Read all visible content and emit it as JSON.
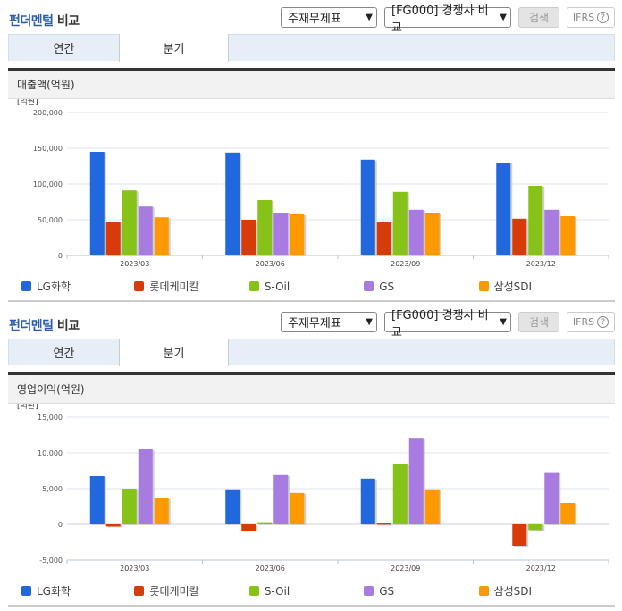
{
  "sections": [
    {
      "title_blue": "펀더멘털",
      "title_rest": " 비교",
      "controls": {
        "select1": "주재무제표",
        "select2": "[FG000] 경쟁사 비교",
        "search_label": "검색",
        "ifrs_label": "IFRS",
        "help_glyph": "?"
      },
      "tabs": [
        {
          "label": "연간"
        },
        {
          "label": "분기"
        }
      ],
      "active_tab": 1,
      "subhead": "매출액(억원)",
      "unit": "[억원]"
    },
    {
      "title_blue": "펀더멘털",
      "title_rest": " 비교",
      "controls": {
        "select1": "주재무제표",
        "select2": "[FG000] 경쟁사 비교",
        "search_label": "검색",
        "ifrs_label": "IFRS",
        "help_glyph": "?"
      },
      "tabs": [
        {
          "label": "연간"
        },
        {
          "label": "분기"
        }
      ],
      "active_tab": 1,
      "subhead": "영업이익(억원)",
      "unit": "[억원]"
    }
  ],
  "legend": [
    {
      "name": "LG화학",
      "color": "#2167dd"
    },
    {
      "name": "롯데케미칼",
      "color": "#d83b0a"
    },
    {
      "name": "S-Oil",
      "color": "#86c218"
    },
    {
      "name": "GS",
      "color": "#a77be0"
    },
    {
      "name": "삼성SDI",
      "color": "#ff9900"
    }
  ],
  "chart_data": [
    {
      "type": "bar",
      "title": "매출액(억원)",
      "ylabel": "[억원]",
      "xlabel": "",
      "categories": [
        "2023/03",
        "2023/06",
        "2023/09",
        "2023/12"
      ],
      "ylim": [
        0,
        200000
      ],
      "yticks": [
        0,
        50000,
        100000,
        150000,
        200000
      ],
      "ytick_labels": [
        "0",
        "50,000",
        "100,000",
        "150,000",
        "200,000"
      ],
      "grid": true,
      "legend_position": "bottom",
      "series": [
        {
          "name": "LG화학",
          "values": [
            145000,
            144000,
            134000,
            130000
          ]
        },
        {
          "name": "롯데케미칼",
          "values": [
            47500,
            50000,
            47500,
            51500
          ]
        },
        {
          "name": "S-Oil",
          "values": [
            91000,
            77500,
            89000,
            97500
          ]
        },
        {
          "name": "GS",
          "values": [
            68500,
            60000,
            64000,
            64000
          ]
        },
        {
          "name": "삼성SDI",
          "values": [
            53500,
            57500,
            59000,
            55000
          ]
        }
      ]
    },
    {
      "type": "bar",
      "title": "영업이익(억원)",
      "ylabel": "[억원]",
      "xlabel": "",
      "categories": [
        "2023/03",
        "2023/06",
        "2023/09",
        "2023/12"
      ],
      "ylim": [
        -5000,
        15000
      ],
      "yticks": [
        -5000,
        0,
        5000,
        10000,
        15000
      ],
      "ytick_labels": [
        "-5,000",
        "0",
        "5,000",
        "10,000",
        "15,000"
      ],
      "grid": true,
      "legend_position": "bottom",
      "series": [
        {
          "name": "LG화학",
          "values": [
            6750,
            4900,
            6400,
            0
          ]
        },
        {
          "name": "롯데케미칼",
          "values": [
            -300,
            -900,
            200,
            -3000
          ]
        },
        {
          "name": "S-Oil",
          "values": [
            5000,
            300,
            8500,
            -800
          ]
        },
        {
          "name": "GS",
          "values": [
            10500,
            6900,
            12100,
            7300
          ]
        },
        {
          "name": "삼성SDI",
          "values": [
            3650,
            4400,
            4900,
            3000
          ]
        }
      ]
    }
  ]
}
